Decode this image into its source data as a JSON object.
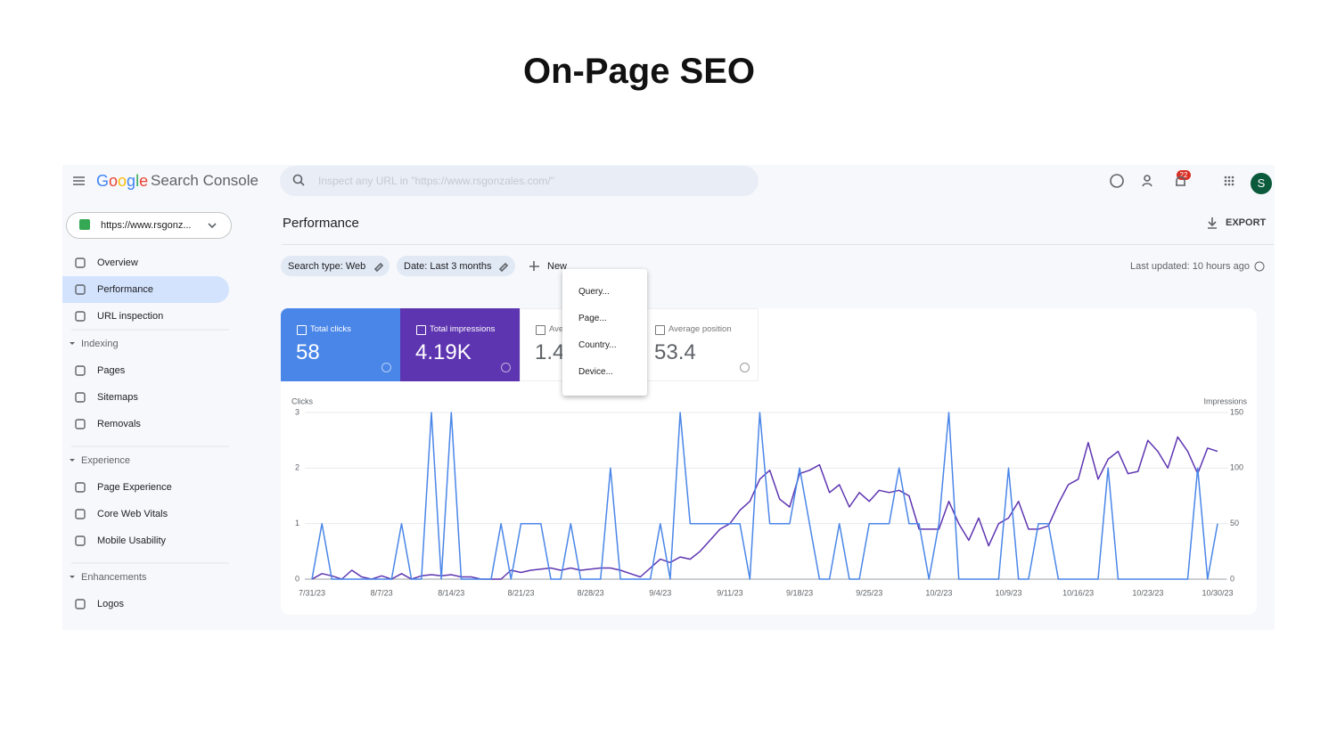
{
  "title": "On-Page SEO",
  "header": {
    "logo": "Google",
    "product": "Search Console",
    "search_placeholder": "Inspect any URL in \"https://www.rsgonzales.com/\"",
    "notifications": "22",
    "avatar": "S"
  },
  "sidebar": {
    "property": "https://www.rsgonz...",
    "top_items": [
      "Overview",
      "Performance",
      "URL inspection"
    ],
    "sections": [
      {
        "heading": "Indexing",
        "items": [
          "Pages",
          "Sitemaps",
          "Removals"
        ]
      },
      {
        "heading": "Experience",
        "items": [
          "Page Experience",
          "Core Web Vitals",
          "Mobile Usability"
        ]
      },
      {
        "heading": "Enhancements",
        "items": [
          "Logos"
        ]
      }
    ]
  },
  "main": {
    "heading": "Performance",
    "export": "EXPORT",
    "filters": [
      "Search type: Web",
      "Date: Last 3 months"
    ],
    "new": "New",
    "menu": [
      "Query...",
      "Page...",
      "Country...",
      "Device..."
    ],
    "last_updated": "Last updated: 10 hours ago"
  },
  "cards": [
    {
      "label": "Total clicks",
      "value": "58"
    },
    {
      "label": "Total impressions",
      "value": "4.19K"
    },
    {
      "label": "Ave",
      "value": "1.4"
    },
    {
      "label": "Average position",
      "value": "53.4"
    }
  ],
  "chart_data": {
    "type": "line",
    "ylabel": "Clicks",
    "y2label": "Impressions",
    "categories": [
      "7/31/23",
      null,
      null,
      null,
      null,
      null,
      null,
      "8/7/23",
      null,
      null,
      null,
      null,
      null,
      null,
      "8/14/23",
      null,
      null,
      null,
      null,
      null,
      null,
      "8/21/23",
      null,
      null,
      null,
      null,
      null,
      null,
      "8/28/23",
      null,
      null,
      null,
      null,
      null,
      null,
      "9/4/23",
      null,
      null,
      null,
      null,
      null,
      null,
      "9/11/23",
      null,
      null,
      null,
      null,
      null,
      null,
      "9/18/23",
      null,
      null,
      null,
      null,
      null,
      null,
      "9/25/23",
      null,
      null,
      null,
      null,
      null,
      null,
      "10/2/23",
      null,
      null,
      null,
      null,
      null,
      null,
      "10/9/23",
      null,
      null,
      null,
      null,
      null,
      null,
      "10/16/23",
      null,
      null,
      null,
      null,
      null,
      null,
      "10/23/23",
      null,
      null,
      null,
      null,
      null,
      null,
      "10/30/23"
    ],
    "series": [
      {
        "name": "Clicks",
        "color": "#4a86e8",
        "values": [
          0,
          1,
          0,
          0,
          0,
          0,
          0,
          0,
          0,
          1,
          0,
          0,
          3,
          0,
          3,
          0,
          0,
          0,
          0,
          1,
          0,
          1,
          1,
          1,
          0,
          0,
          1,
          0,
          0,
          0,
          2,
          0,
          0,
          0,
          0,
          1,
          0,
          3,
          1,
          1,
          1,
          1,
          1,
          1,
          0,
          3,
          1,
          1,
          1,
          2,
          1,
          0,
          0,
          1,
          0,
          0,
          1,
          1,
          1,
          2,
          1,
          1,
          0,
          1,
          3,
          0,
          0,
          0,
          0,
          0,
          2,
          0,
          0,
          1,
          1,
          0,
          0,
          0,
          0,
          0,
          2,
          0,
          0,
          0,
          0,
          0,
          0,
          0,
          0,
          2,
          0,
          1
        ]
      },
      {
        "name": "Impressions",
        "color": "#5e35b1",
        "axis": "y2",
        "values": [
          0,
          5,
          3,
          0,
          8,
          2,
          0,
          3,
          0,
          5,
          0,
          3,
          4,
          3,
          4,
          2,
          2,
          0,
          0,
          0,
          8,
          6,
          8,
          9,
          10,
          8,
          10,
          8,
          9,
          10,
          10,
          8,
          5,
          2,
          10,
          18,
          15,
          20,
          18,
          25,
          35,
          45,
          50,
          62,
          70,
          90,
          98,
          72,
          65,
          95,
          98,
          103,
          78,
          85,
          65,
          78,
          70,
          80,
          78,
          80,
          75,
          45,
          45,
          45,
          70,
          50,
          35,
          55,
          30,
          50,
          55,
          70,
          45,
          45,
          48,
          68,
          85,
          90,
          123,
          90,
          108,
          115,
          95,
          97,
          125,
          115,
          100,
          128,
          115,
          95,
          118,
          115
        ]
      }
    ],
    "ylim": [
      0,
      3
    ],
    "yticks": [
      0,
      1,
      2,
      3
    ],
    "y2lim": [
      0,
      150
    ],
    "y2ticks": [
      0,
      50,
      100,
      150
    ],
    "grid": true
  }
}
